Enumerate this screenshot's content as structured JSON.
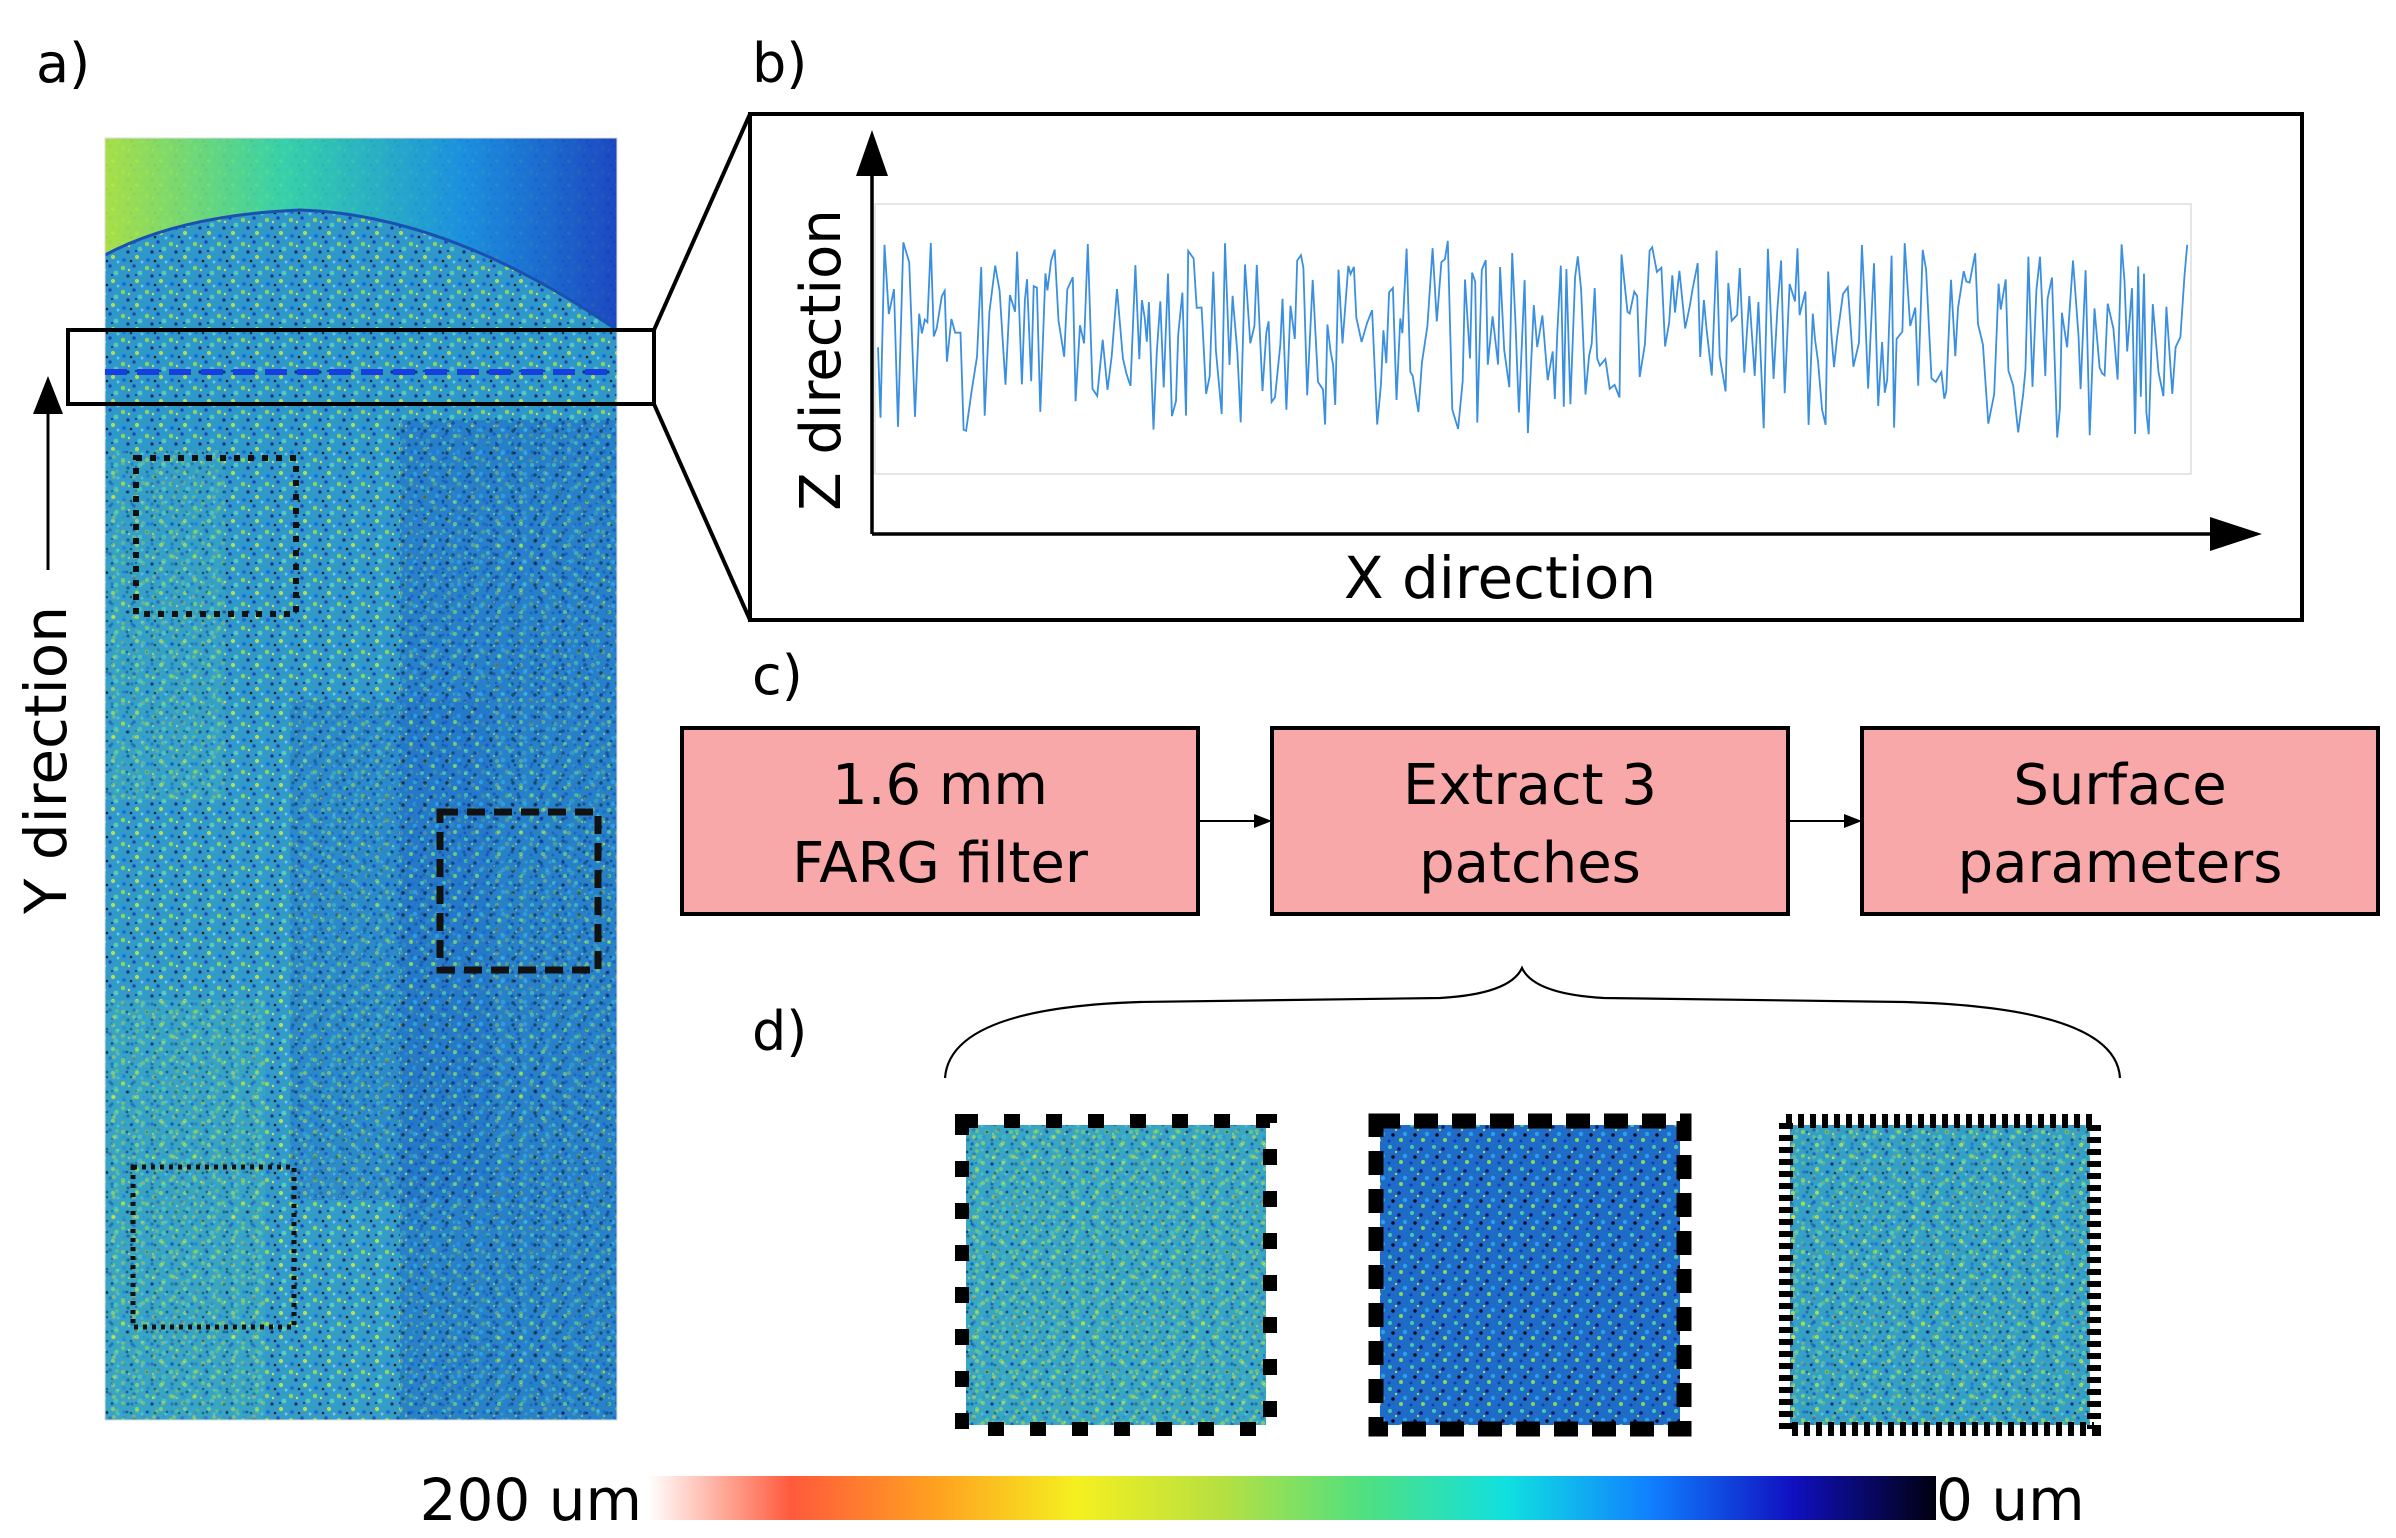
{
  "panels": {
    "a": {
      "label": "a)",
      "axis_label": "Y direction"
    },
    "b": {
      "label": "b)",
      "x_axis_label": "X direction",
      "z_axis_label": "Z direction"
    },
    "c": {
      "label": "c)",
      "steps": [
        {
          "line1": "1.6 mm",
          "line2": "FARG filter"
        },
        {
          "line1": "Extract 3",
          "line2": "patches"
        },
        {
          "line1": "Surface",
          "line2": "parameters"
        }
      ]
    },
    "d": {
      "label": "d)"
    }
  },
  "colorbar": {
    "max_label": "200 um",
    "min_label": "0 um",
    "stops": [
      "#ffffff",
      "#ff5a3c",
      "#ffa020",
      "#f5f020",
      "#b8e040",
      "#50e080",
      "#10e0e0",
      "#1080ff",
      "#1010c0",
      "#000010"
    ]
  },
  "colors": {
    "step_fill": "#f8a8a8",
    "profile_line": "#3a8fe0",
    "scan_line": "#1a3de0"
  }
}
